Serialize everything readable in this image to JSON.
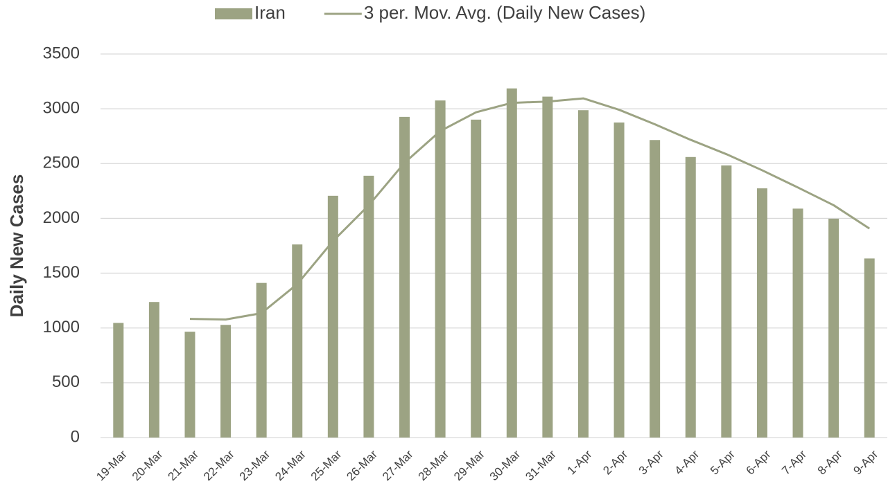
{
  "chart_data": {
    "type": "bar-line",
    "y_axis_label": "Daily New Cases",
    "categories": [
      "19-Mar",
      "20-Mar",
      "21-Mar",
      "22-Mar",
      "23-Mar",
      "24-Mar",
      "25-Mar",
      "26-Mar",
      "27-Mar",
      "28-Mar",
      "29-Mar",
      "30-Mar",
      "31-Mar",
      "1-Apr",
      "2-Apr",
      "3-Apr",
      "4-Apr",
      "5-Apr",
      "6-Apr",
      "7-Apr",
      "8-Apr",
      "9-Apr"
    ],
    "series": [
      {
        "name": "Iran",
        "kind": "bar",
        "color": "#9ca383",
        "values": [
          1046,
          1237,
          966,
          1028,
          1411,
          1762,
          2206,
          2389,
          2926,
          3076,
          2901,
          3186,
          3111,
          2987,
          2875,
          2715,
          2560,
          2483,
          2274,
          2089,
          1997,
          1634
        ]
      },
      {
        "name": "3 per. Mov. Avg. (Daily New Cases)",
        "kind": "line",
        "color": "#9ca383",
        "values": [
          null,
          null,
          1083,
          1077,
          1135,
          1400,
          1793,
          2119,
          2507,
          2797,
          2968,
          3054,
          3066,
          3095,
          2991,
          2859,
          2717,
          2586,
          2439,
          2282,
          2120,
          1907
        ]
      }
    ],
    "ylim": [
      0,
      3500
    ],
    "yticks": [
      0,
      500,
      1000,
      1500,
      2000,
      2500,
      3000,
      3500
    ],
    "grid": true,
    "legend": "top"
  }
}
